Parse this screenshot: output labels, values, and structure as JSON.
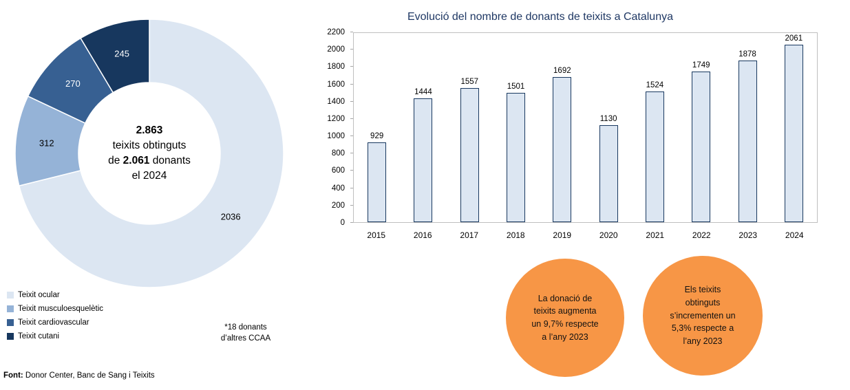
{
  "chart_data": [
    {
      "type": "pie",
      "subtype": "donut",
      "labels": [
        "Teixit ocular",
        "Teixit musculoesquelètic",
        "Teixit cardiovascular",
        "Teixit cutani"
      ],
      "values": [
        2036,
        312,
        270,
        245
      ],
      "colors": [
        "#dce6f2",
        "#95b3d7",
        "#376092",
        "#17375e"
      ],
      "label_colors": [
        "#000000",
        "#000000",
        "#ffffff",
        "#ffffff"
      ],
      "start_angle_deg": 0,
      "direction": "clockwise",
      "legend_position": "bottom-left"
    },
    {
      "type": "bar",
      "title": "Evolució del nombre de donants de teixits a Catalunya",
      "categories": [
        "2015",
        "2016",
        "2017",
        "2018",
        "2019",
        "2020",
        "2021",
        "2022",
        "2023",
        "2024"
      ],
      "values": [
        929,
        1444,
        1557,
        1501,
        1692,
        1130,
        1524,
        1749,
        1878,
        2061
      ],
      "ylim": [
        0,
        2200
      ],
      "ytick_step": 200,
      "bar_color": "#dce6f2",
      "bar_border": "#17375e",
      "title_color": "#1f3864",
      "grid": false,
      "legend": "none"
    }
  ],
  "donut_center": {
    "total": "2.863",
    "line2": "teixits obtinguts",
    "line3_pre": "de ",
    "line3_donors": "2.061",
    "line3_post": " donants",
    "line4": "el 2024"
  },
  "note": {
    "text": "*18 donants\nd’altres CCAA"
  },
  "footer": {
    "label": "Font:",
    "text": " Donor Center, Banc de Sang i Teixits"
  },
  "badges": [
    {
      "text": "La donació de\nteixits augmenta\nun 9,7% respecte\na l’any 2023",
      "color": "#f79646"
    },
    {
      "text": "Els teixits\nobtinguts\ns’incrementen un\n5,3% respecte a\nl’any 2023",
      "color": "#f79646"
    }
  ]
}
